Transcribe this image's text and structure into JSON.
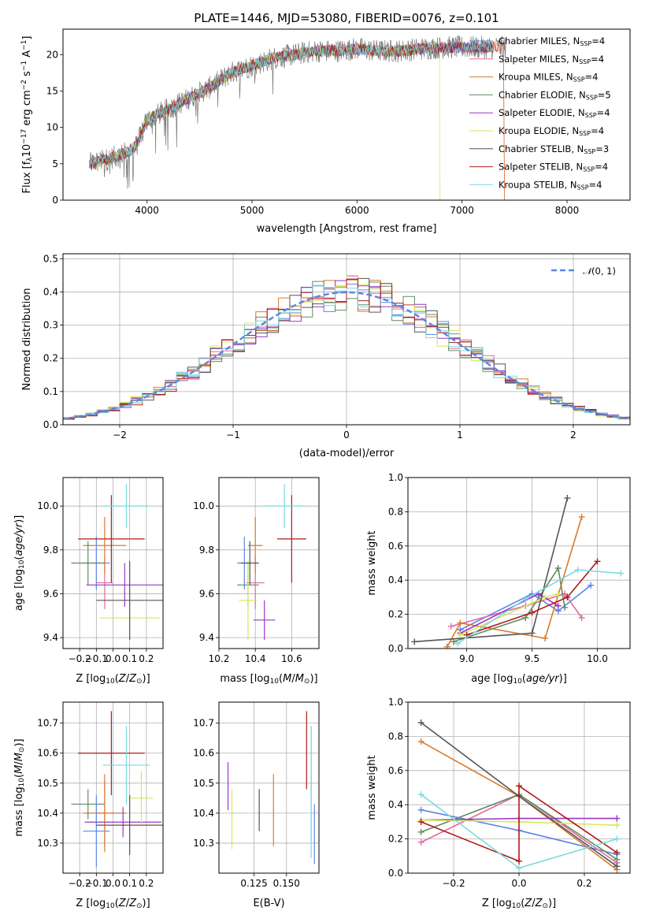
{
  "figure_title": "PLATE=1446, MJD=53080, FIBERID=0076, z=0.101",
  "colors": {
    "series": [
      "#5b86e5",
      "#e56a9f",
      "#d97a2b",
      "#5f8d5f",
      "#9b35c6",
      "#d4e85a",
      "#555555",
      "#b01a1a",
      "#7ad9df"
    ]
  },
  "chart_data": [
    {
      "id": "spectrum",
      "type": "line",
      "title": "PLATE=1446, MJD=53080, FIBERID=0076, z=0.101",
      "xlabel": "wavelength [Angstrom, rest frame]",
      "ylabel": "Flux [f_λ10^-17 erg cm^-2 s^-1 A^-1]",
      "xlim": [
        3200,
        8600
      ],
      "ylim": [
        0,
        23.5
      ],
      "xticks": [
        4000,
        5000,
        6000,
        7000,
        8000
      ],
      "yticks": [
        0,
        5,
        10,
        15,
        20
      ],
      "legend_position": "top-right",
      "continuum": {
        "x": [
          3450,
          3600,
          3800,
          3900,
          4000,
          4200,
          4400,
          4600,
          4800,
          5000,
          5200,
          5400,
          5600,
          5800,
          6000,
          6200,
          6400,
          6600,
          6800,
          7000,
          7200,
          7400
        ],
        "y": [
          5,
          5.5,
          6.5,
          7.5,
          11,
          12.5,
          14,
          15.5,
          17.5,
          18.5,
          19.5,
          20,
          20.5,
          20.5,
          20.8,
          20.5,
          20.5,
          20.8,
          21,
          21,
          21,
          21
        ]
      },
      "series": [
        {
          "name": "Chabrier MILES",
          "nssp": "4"
        },
        {
          "name": "Salpeter MILES",
          "nssp": "4"
        },
        {
          "name": "Kroupa MILES",
          "nssp": "4"
        },
        {
          "name": "Chabrier ELODIE",
          "nssp": "5"
        },
        {
          "name": "Salpeter ELODIE",
          "nssp": "4"
        },
        {
          "name": "Kroupa ELODIE",
          "nssp": "4"
        },
        {
          "name": "Chabrier STELIB",
          "nssp": "3"
        },
        {
          "name": "Salpeter STELIB",
          "nssp": "4"
        },
        {
          "name": "Kroupa STELIB",
          "nssp": "4"
        }
      ]
    },
    {
      "id": "residuals",
      "type": "line",
      "xlabel": "(data-model)/error",
      "ylabel": "Normed distribution",
      "xlim": [
        -2.5,
        2.5
      ],
      "ylim": [
        0,
        0.515
      ],
      "xticks": [
        -2,
        -1,
        0,
        1,
        2
      ],
      "yticks": [
        0.0,
        0.1,
        0.2,
        0.3,
        0.4,
        0.5
      ],
      "grid": true,
      "legend_position": "top-right",
      "legend": "N(0,1)",
      "bin_width": 0.1
    },
    {
      "id": "age_vs_Z",
      "type": "scatter",
      "xlabel": "Z [log10(Z/Z⊙)]",
      "ylabel": "age [log10(age/yr)]",
      "xlim": [
        -0.3,
        0.3
      ],
      "ylim": [
        9.35,
        10.13
      ],
      "xticks": [
        -0.2,
        -0.1,
        0.0,
        0.1,
        0.2
      ],
      "yticks": [
        9.4,
        9.6,
        9.8,
        10.0
      ],
      "grid": true,
      "points": [
        {
          "x": -0.1,
          "y": 9.74,
          "xerr": 0.08,
          "yerr": 0.12
        },
        {
          "x": -0.05,
          "y": 9.65,
          "xerr": 0.05,
          "yerr": 0.12
        },
        {
          "x": -0.05,
          "y": 9.82,
          "xerr": 0.13,
          "yerr": 0.13
        },
        {
          "x": -0.15,
          "y": 9.74,
          "xerr": 0.1,
          "yerr": 0.1
        },
        {
          "x": 0.07,
          "y": 9.64,
          "xerr": 0.23,
          "yerr": 0.1
        },
        {
          "x": 0.1,
          "y": 9.49,
          "xerr": 0.18,
          "yerr": 0.09
        },
        {
          "x": 0.1,
          "y": 9.57,
          "xerr": 0.2,
          "yerr": 0.18
        },
        {
          "x": -0.01,
          "y": 9.85,
          "xerr": 0.2,
          "yerr": 0.2
        },
        {
          "x": 0.08,
          "y": 10.0,
          "xerr": 0.14,
          "yerr": 0.1
        }
      ]
    },
    {
      "id": "age_vs_mass",
      "type": "scatter",
      "xlabel": "mass [log10(M/M⊙)]",
      "ylabel": "",
      "xlim": [
        10.2,
        10.75
      ],
      "ylim": [
        9.35,
        10.13
      ],
      "xticks": [
        10.2,
        10.4,
        10.6
      ],
      "yticks": [
        9.4,
        9.6,
        9.8,
        10.0
      ],
      "grid": true,
      "points": [
        {
          "x": 10.34,
          "y": 9.74,
          "xerr": 0.04,
          "yerr": 0.12
        },
        {
          "x": 10.4,
          "y": 9.65,
          "xerr": 0.05,
          "yerr": 0.12
        },
        {
          "x": 10.4,
          "y": 9.82,
          "xerr": 0.04,
          "yerr": 0.13
        },
        {
          "x": 10.36,
          "y": 9.64,
          "xerr": 0.06,
          "yerr": 0.1
        },
        {
          "x": 10.45,
          "y": 9.48,
          "xerr": 0.06,
          "yerr": 0.09
        },
        {
          "x": 10.36,
          "y": 9.57,
          "xerr": 0.05,
          "yerr": 0.18
        },
        {
          "x": 10.37,
          "y": 9.74,
          "xerr": 0.05,
          "yerr": 0.1
        },
        {
          "x": 10.6,
          "y": 9.85,
          "xerr": 0.08,
          "yerr": 0.2
        },
        {
          "x": 10.56,
          "y": 10.0,
          "xerr": 0.12,
          "yerr": 0.1
        }
      ]
    },
    {
      "id": "weight_vs_age",
      "type": "line",
      "xlabel": "age [log10(age/yr)]",
      "ylabel": "mass weight",
      "xlim": [
        8.55,
        10.25
      ],
      "ylim": [
        0,
        1
      ],
      "xticks": [
        9.0,
        9.5,
        10.0
      ],
      "yticks": [
        0.0,
        0.2,
        0.4,
        0.6,
        0.8,
        1.0
      ],
      "grid": true,
      "series": [
        {
          "x": [
            8.95,
            9.5,
            9.7,
            9.95
          ],
          "y": [
            0.11,
            0.32,
            0.22,
            0.37
          ]
        },
        {
          "x": [
            8.88,
            9.45,
            9.75,
            9.88
          ],
          "y": [
            0.13,
            0.25,
            0.32,
            0.18
          ]
        },
        {
          "x": [
            8.85,
            8.95,
            9.6,
            9.88
          ],
          "y": [
            0.01,
            0.15,
            0.06,
            0.77
          ]
        },
        {
          "x": [
            8.9,
            9.45,
            9.7,
            9.75
          ],
          "y": [
            0.04,
            0.18,
            0.47,
            0.24
          ]
        },
        {
          "x": [
            8.95,
            9.55,
            9.7
          ],
          "y": [
            0.09,
            0.32,
            0.25
          ]
        },
        {
          "x": [
            8.95,
            9.6,
            9.7
          ],
          "y": [
            0.08,
            0.3,
            0.32
          ]
        },
        {
          "x": [
            8.6,
            9.5,
            9.77
          ],
          "y": [
            0.04,
            0.09,
            0.88
          ]
        },
        {
          "x": [
            9.0,
            9.5,
            9.77,
            10.0
          ],
          "y": [
            0.08,
            0.21,
            0.3,
            0.51
          ]
        },
        {
          "x": [
            8.93,
            9.45,
            9.85,
            10.18
          ],
          "y": [
            0.03,
            0.29,
            0.46,
            0.44
          ]
        }
      ]
    },
    {
      "id": "mass_vs_Z",
      "type": "scatter",
      "xlabel": "Z [log10(Z/Z⊙)]",
      "ylabel": "mass [log10(M/M⊙)]",
      "xlim": [
        -0.3,
        0.3
      ],
      "ylim": [
        10.2,
        10.77
      ],
      "xticks": [
        -0.2,
        -0.1,
        0.0,
        0.1,
        0.2
      ],
      "yticks": [
        10.3,
        10.4,
        10.5,
        10.6,
        10.7
      ],
      "grid": true,
      "points": [
        {
          "x": -0.1,
          "y": 10.34,
          "xerr": 0.08,
          "yerr": 0.12
        },
        {
          "x": -0.05,
          "y": 10.4,
          "xerr": 0.06,
          "yerr": 0.11
        },
        {
          "x": -0.05,
          "y": 10.4,
          "xerr": 0.13,
          "yerr": 0.13
        },
        {
          "x": -0.15,
          "y": 10.43,
          "xerr": 0.1,
          "yerr": 0.05
        },
        {
          "x": 0.06,
          "y": 10.37,
          "xerr": 0.23,
          "yerr": 0.05
        },
        {
          "x": 0.17,
          "y": 10.45,
          "xerr": 0.07,
          "yerr": 0.09
        },
        {
          "x": 0.1,
          "y": 10.36,
          "xerr": 0.2,
          "yerr": 0.1
        },
        {
          "x": -0.01,
          "y": 10.6,
          "xerr": 0.2,
          "yerr": 0.14
        },
        {
          "x": 0.08,
          "y": 10.56,
          "xerr": 0.14,
          "yerr": 0.13
        }
      ]
    },
    {
      "id": "mass_vs_ebv",
      "type": "scatter",
      "xlabel": "E(B-V)",
      "ylabel": "",
      "xlim": [
        0.098,
        0.175
      ],
      "ylim": [
        10.2,
        10.77
      ],
      "xticks": [
        0.125,
        0.15
      ],
      "yticks": [
        10.3,
        10.4,
        10.5,
        10.6,
        10.7
      ],
      "grid": true,
      "points": [
        {
          "x": 0.1715,
          "y": 10.33,
          "yerr": 0.1
        },
        {
          "x": 0.169,
          "y": 10.5,
          "yerr": 0.19
        },
        {
          "x": 0.14,
          "y": 10.41,
          "yerr": 0.12
        },
        {
          "x": 0.134,
          "y": 10.48,
          "yerr": 0.0
        },
        {
          "x": 0.105,
          "y": 10.49,
          "yerr": 0.08
        },
        {
          "x": 0.108,
          "y": 10.38,
          "yerr": 0.1
        },
        {
          "x": 0.129,
          "y": 10.41,
          "yerr": 0.07
        },
        {
          "x": 0.1655,
          "y": 10.61,
          "yerr": 0.13
        },
        {
          "x": 0.169,
          "y": 10.47,
          "yerr": 0.22
        }
      ]
    },
    {
      "id": "weight_vs_Z",
      "type": "line",
      "xlabel": "Z [log10(Z/Z⊙)]",
      "ylabel": "mass weight",
      "xlim": [
        -0.34,
        0.34
      ],
      "ylim": [
        0,
        1
      ],
      "xticks": [
        -0.2,
        0.0,
        0.2
      ],
      "yticks": [
        0.0,
        0.2,
        0.4,
        0.6,
        0.8,
        1.0
      ],
      "grid": true,
      "series": [
        {
          "x": [
            -0.3,
            0.0,
            0.3
          ],
          "y": [
            0.37,
            0.25,
            0.11
          ]
        },
        {
          "x": [
            -0.3,
            0.0,
            0.3
          ],
          "y": [
            0.18,
            0.46,
            0.06
          ]
        },
        {
          "x": [
            -0.3,
            0.0,
            0.3
          ],
          "y": [
            0.77,
            0.45,
            0.02
          ]
        },
        {
          "x": [
            -0.3,
            0.0,
            0.3
          ],
          "y": [
            0.24,
            0.46,
            0.08
          ]
        },
        {
          "x": [
            -0.3,
            0.0,
            0.3
          ],
          "y": [
            0.31,
            0.32,
            0.32
          ]
        },
        {
          "x": [
            -0.3,
            0.0,
            0.3
          ],
          "y": [
            0.31,
            0.3,
            0.28
          ]
        },
        {
          "x": [
            -0.3,
            0.0,
            0.3
          ],
          "y": [
            0.88,
            0.45,
            0.04
          ]
        },
        {
          "x": [
            -0.3,
            0.0,
            0.0,
            0.3
          ],
          "y": [
            0.3,
            0.07,
            0.51,
            0.12
          ]
        },
        {
          "x": [
            -0.3,
            0.0,
            0.3
          ],
          "y": [
            0.46,
            0.03,
            0.2
          ]
        }
      ]
    }
  ]
}
